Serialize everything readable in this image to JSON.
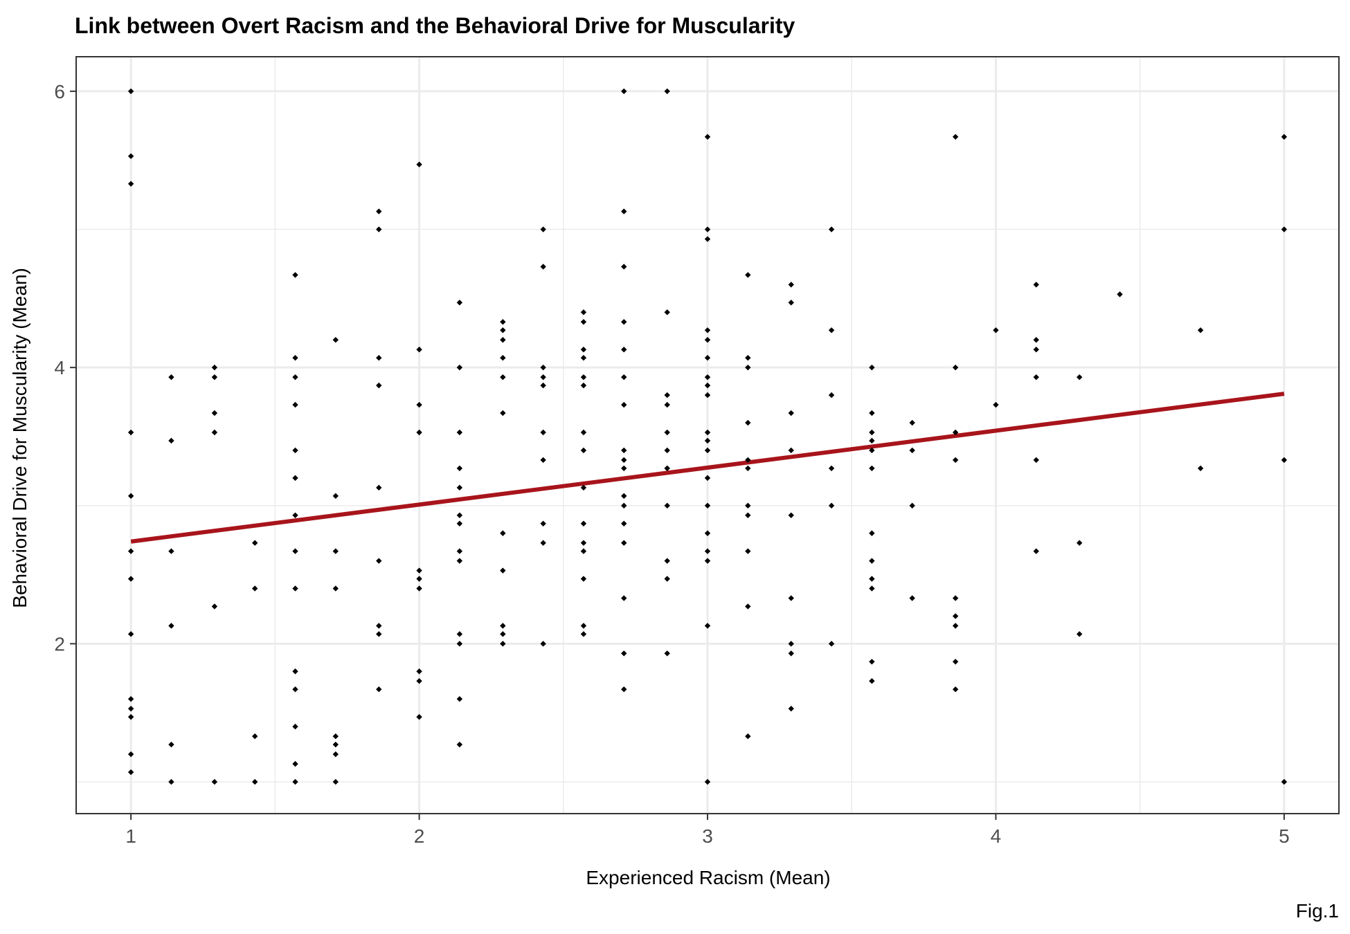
{
  "chart_data": {
    "type": "scatter",
    "title": "Link between Overt Racism and the Behavioral Drive for Muscularity",
    "xlabel": "Experienced Racism (Mean)",
    "ylabel": "Behavioral Drive for Muscularity (Mean)",
    "caption": "Fig.1",
    "xlim": [
      0.81,
      5.19
    ],
    "ylim": [
      0.77,
      6.25
    ],
    "xticks": [
      1,
      2,
      3,
      4,
      5
    ],
    "yticks": [
      2,
      4,
      6
    ],
    "grid": true,
    "colors": {
      "points": "#000000",
      "trend": "#a8141b",
      "grid": "#ebebeb",
      "panel_border": "#333333"
    },
    "trend_line": {
      "x": [
        1,
        5
      ],
      "y": [
        2.74,
        3.81
      ]
    },
    "points": [
      [
        1,
        6
      ],
      [
        1,
        5.53
      ],
      [
        1,
        5.33
      ],
      [
        1,
        3.53
      ],
      [
        1,
        3.07
      ],
      [
        1,
        2.67
      ],
      [
        1,
        2.47
      ],
      [
        1,
        2.07
      ],
      [
        1,
        1.6
      ],
      [
        1,
        1.53
      ],
      [
        1,
        1.47
      ],
      [
        1,
        1.2
      ],
      [
        1,
        1.07
      ],
      [
        1.14,
        3.93
      ],
      [
        1.14,
        3.47
      ],
      [
        1.14,
        2.67
      ],
      [
        1.14,
        2.13
      ],
      [
        1.14,
        1.27
      ],
      [
        1.14,
        1
      ],
      [
        1.29,
        4
      ],
      [
        1.29,
        3.93
      ],
      [
        1.29,
        3.67
      ],
      [
        1.29,
        3.53
      ],
      [
        1.29,
        2.27
      ],
      [
        1.29,
        1
      ],
      [
        1.43,
        2.73
      ],
      [
        1.43,
        2.4
      ],
      [
        1.43,
        1.33
      ],
      [
        1.43,
        1
      ],
      [
        1.57,
        4.67
      ],
      [
        1.57,
        4.07
      ],
      [
        1.57,
        3.93
      ],
      [
        1.57,
        3.73
      ],
      [
        1.57,
        3.4
      ],
      [
        1.57,
        3.2
      ],
      [
        1.57,
        2.93
      ],
      [
        1.57,
        2.67
      ],
      [
        1.57,
        2.4
      ],
      [
        1.57,
        1.8
      ],
      [
        1.57,
        1.67
      ],
      [
        1.57,
        1.4
      ],
      [
        1.57,
        1.13
      ],
      [
        1.57,
        1
      ],
      [
        1.71,
        4.2
      ],
      [
        1.71,
        3.07
      ],
      [
        1.71,
        2.67
      ],
      [
        1.71,
        2.4
      ],
      [
        1.71,
        1.33
      ],
      [
        1.71,
        1.27
      ],
      [
        1.71,
        1.2
      ],
      [
        1.71,
        1
      ],
      [
        1.86,
        5.13
      ],
      [
        1.86,
        5
      ],
      [
        1.86,
        4.07
      ],
      [
        1.86,
        3.87
      ],
      [
        1.86,
        3.13
      ],
      [
        1.86,
        2.6
      ],
      [
        1.86,
        2.13
      ],
      [
        1.86,
        2.07
      ],
      [
        1.86,
        1.67
      ],
      [
        2,
        5.47
      ],
      [
        2,
        4.13
      ],
      [
        2,
        3.73
      ],
      [
        2,
        3.53
      ],
      [
        2,
        2.53
      ],
      [
        2,
        2.47
      ],
      [
        2,
        2.4
      ],
      [
        2,
        1.8
      ],
      [
        2,
        1.73
      ],
      [
        2,
        1.47
      ],
      [
        2.14,
        4.47
      ],
      [
        2.14,
        4
      ],
      [
        2.14,
        3.53
      ],
      [
        2.14,
        3.27
      ],
      [
        2.14,
        3.13
      ],
      [
        2.14,
        2.93
      ],
      [
        2.14,
        2.87
      ],
      [
        2.14,
        2.67
      ],
      [
        2.14,
        2.6
      ],
      [
        2.14,
        2.07
      ],
      [
        2.14,
        2
      ],
      [
        2.14,
        1.6
      ],
      [
        2.14,
        1.27
      ],
      [
        2.29,
        4.33
      ],
      [
        2.29,
        4.27
      ],
      [
        2.29,
        4.2
      ],
      [
        2.29,
        4.07
      ],
      [
        2.29,
        3.93
      ],
      [
        2.29,
        3.67
      ],
      [
        2.29,
        2.8
      ],
      [
        2.29,
        2.53
      ],
      [
        2.29,
        2.13
      ],
      [
        2.29,
        2.07
      ],
      [
        2.29,
        2
      ],
      [
        2.43,
        5
      ],
      [
        2.43,
        4.73
      ],
      [
        2.43,
        4
      ],
      [
        2.43,
        3.93
      ],
      [
        2.43,
        3.87
      ],
      [
        2.43,
        3.53
      ],
      [
        2.43,
        3.33
      ],
      [
        2.43,
        2.87
      ],
      [
        2.43,
        2.73
      ],
      [
        2.43,
        2
      ],
      [
        2.57,
        4.4
      ],
      [
        2.57,
        4.33
      ],
      [
        2.57,
        4.13
      ],
      [
        2.57,
        4.07
      ],
      [
        2.57,
        3.93
      ],
      [
        2.57,
        3.87
      ],
      [
        2.57,
        3.53
      ],
      [
        2.57,
        3.4
      ],
      [
        2.57,
        3.13
      ],
      [
        2.57,
        2.87
      ],
      [
        2.57,
        2.73
      ],
      [
        2.57,
        2.67
      ],
      [
        2.57,
        2.47
      ],
      [
        2.57,
        2.13
      ],
      [
        2.57,
        2.07
      ],
      [
        2.71,
        6
      ],
      [
        2.71,
        5.13
      ],
      [
        2.71,
        4.73
      ],
      [
        2.71,
        4.33
      ],
      [
        2.71,
        4.13
      ],
      [
        2.71,
        3.93
      ],
      [
        2.71,
        3.73
      ],
      [
        2.71,
        3.4
      ],
      [
        2.71,
        3.33
      ],
      [
        2.71,
        3.27
      ],
      [
        2.71,
        3.07
      ],
      [
        2.71,
        3
      ],
      [
        2.71,
        2.87
      ],
      [
        2.71,
        2.73
      ],
      [
        2.71,
        2.33
      ],
      [
        2.71,
        1.93
      ],
      [
        2.71,
        1.67
      ],
      [
        2.86,
        6
      ],
      [
        2.86,
        4.4
      ],
      [
        2.86,
        3.8
      ],
      [
        2.86,
        3.73
      ],
      [
        2.86,
        3.53
      ],
      [
        2.86,
        3.4
      ],
      [
        2.86,
        3.27
      ],
      [
        2.86,
        3.27
      ],
      [
        2.86,
        3
      ],
      [
        2.86,
        2.6
      ],
      [
        2.86,
        2.47
      ],
      [
        2.86,
        1.93
      ],
      [
        3,
        5.67
      ],
      [
        3,
        5
      ],
      [
        3,
        4.93
      ],
      [
        3,
        4.27
      ],
      [
        3,
        4.2
      ],
      [
        3,
        4.07
      ],
      [
        3,
        3.93
      ],
      [
        3,
        3.87
      ],
      [
        3,
        3.8
      ],
      [
        3,
        3.53
      ],
      [
        3,
        3.47
      ],
      [
        3,
        3.4
      ],
      [
        3,
        3.2
      ],
      [
        3,
        3
      ],
      [
        3,
        2.8
      ],
      [
        3,
        2.67
      ],
      [
        3,
        2.6
      ],
      [
        3,
        2.13
      ],
      [
        3,
        1
      ],
      [
        3.14,
        4.67
      ],
      [
        3.14,
        4.07
      ],
      [
        3.14,
        4
      ],
      [
        3.14,
        3.6
      ],
      [
        3.14,
        3.33
      ],
      [
        3.14,
        3.27
      ],
      [
        3.14,
        3
      ],
      [
        3.14,
        2.93
      ],
      [
        3.14,
        2.67
      ],
      [
        3.14,
        2.27
      ],
      [
        3.14,
        1.33
      ],
      [
        3.29,
        4.6
      ],
      [
        3.29,
        4.47
      ],
      [
        3.29,
        3.67
      ],
      [
        3.29,
        3.4
      ],
      [
        3.29,
        2.93
      ],
      [
        3.29,
        2.33
      ],
      [
        3.29,
        2
      ],
      [
        3.29,
        1.93
      ],
      [
        3.29,
        1.53
      ],
      [
        3.43,
        5
      ],
      [
        3.43,
        4.27
      ],
      [
        3.43,
        3.8
      ],
      [
        3.43,
        3.27
      ],
      [
        3.43,
        3
      ],
      [
        3.43,
        2
      ],
      [
        3.57,
        4
      ],
      [
        3.57,
        3.67
      ],
      [
        3.57,
        3.53
      ],
      [
        3.57,
        3.47
      ],
      [
        3.57,
        3.4
      ],
      [
        3.57,
        3.27
      ],
      [
        3.57,
        2.8
      ],
      [
        3.57,
        2.6
      ],
      [
        3.57,
        2.47
      ],
      [
        3.57,
        2.4
      ],
      [
        3.57,
        1.87
      ],
      [
        3.57,
        1.73
      ],
      [
        3.71,
        3.6
      ],
      [
        3.71,
        3.4
      ],
      [
        3.71,
        3
      ],
      [
        3.71,
        2.33
      ],
      [
        3.86,
        5.67
      ],
      [
        3.86,
        4
      ],
      [
        3.86,
        3.53
      ],
      [
        3.86,
        3.33
      ],
      [
        3.86,
        2.33
      ],
      [
        3.86,
        2.2
      ],
      [
        3.86,
        2.13
      ],
      [
        3.86,
        1.87
      ],
      [
        3.86,
        1.67
      ],
      [
        4,
        4.27
      ],
      [
        4,
        3.73
      ],
      [
        4.14,
        4.6
      ],
      [
        4.14,
        4.2
      ],
      [
        4.14,
        4.13
      ],
      [
        4.14,
        3.93
      ],
      [
        4.14,
        3.33
      ],
      [
        4.14,
        2.67
      ],
      [
        4.29,
        3.93
      ],
      [
        4.29,
        2.73
      ],
      [
        4.29,
        2.07
      ],
      [
        4.43,
        4.53
      ],
      [
        4.71,
        4.27
      ],
      [
        4.71,
        3.27
      ],
      [
        5,
        5.67
      ],
      [
        5,
        5
      ],
      [
        5,
        3.33
      ],
      [
        5,
        1
      ]
    ]
  }
}
